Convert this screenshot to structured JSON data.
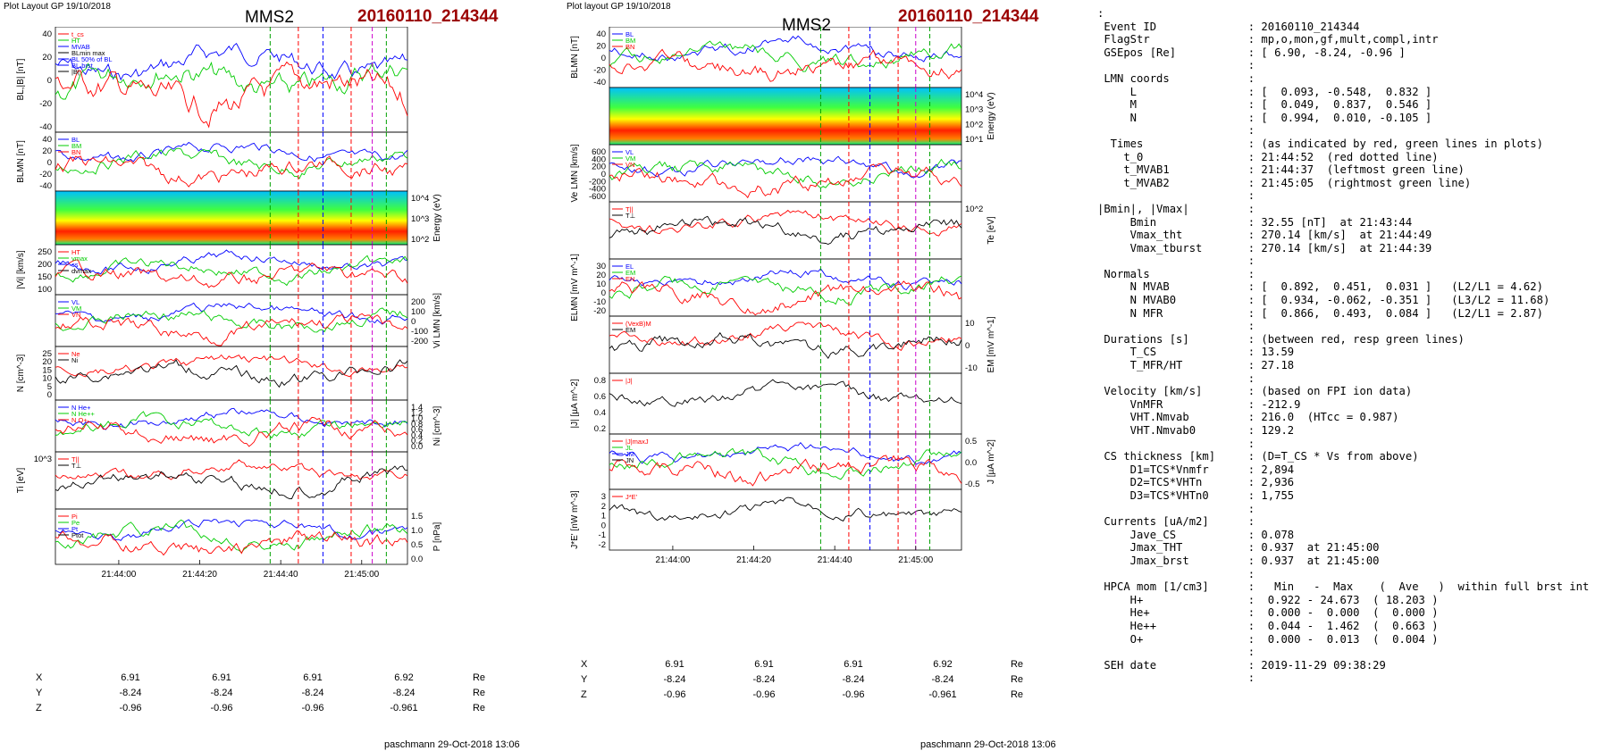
{
  "left": {
    "header": "Plot Layout GP 19/10/2018",
    "spacecraft": "MMS2",
    "event": "20160110_214344",
    "footer": "paschmann 29-Oct-2018 13:06",
    "time_ticks": [
      "21:44:00",
      "21:44:20",
      "21:44:40",
      "21:45:00"
    ],
    "ephemeris": {
      "rows": [
        {
          "label": "X",
          "values": [
            "6.91",
            "6.91",
            "6.91",
            "6.92"
          ],
          "unit": "Re"
        },
        {
          "label": "Y",
          "values": [
            "-8.24",
            "-8.24",
            "-8.24",
            "-8.24"
          ],
          "unit": "Re"
        },
        {
          "label": "Z",
          "values": [
            "-0.96",
            "-0.96",
            "-0.96",
            "-0.961"
          ],
          "unit": "Re"
        }
      ]
    },
    "panels": [
      {
        "ylabel": "BL,|B| [nT]",
        "ticks": [
          "40",
          "20",
          "0",
          "-20",
          "-40"
        ],
        "legend": [
          "t_cs",
          "HT",
          "MVAB",
          "BLmin max",
          "BL 50% of BL",
          "BL,brst",
          "|B|"
        ]
      },
      {
        "ylabel": "BLMN [nT]",
        "ticks": [
          "40",
          "20",
          "0",
          "-20",
          "-40"
        ],
        "legend": [
          "BL",
          "BM",
          "BN"
        ]
      },
      {
        "ylabel": "Energy (eV)",
        "ticks": [
          "10^4",
          "10^3",
          "10^2"
        ],
        "legend": []
      },
      {
        "ylabel": "|Vi| [km/s]",
        "ticks": [
          "250",
          "200",
          "150",
          "100"
        ],
        "legend": [
          "HT",
          "vmax",
          "cs",
          "dvmax"
        ]
      },
      {
        "ylabel": "Vi LMN [km/s]",
        "ticks": [
          "200",
          "100",
          "0",
          "-100",
          "-200"
        ],
        "legend": [
          "VL",
          "VM",
          "VN"
        ]
      },
      {
        "ylabel": "N [cm^-3]",
        "ticks": [
          "25",
          "20",
          "15",
          "10",
          "5",
          "0"
        ],
        "legend": [
          "Ne",
          "Ni"
        ]
      },
      {
        "ylabel": "Ni [cm^-3]",
        "ticks": [
          "1.4",
          "1.2",
          "1.0",
          "0.8",
          "0.6",
          "0.4",
          "0.2",
          "0.0"
        ],
        "legend": [
          "N He+",
          "N He++",
          "N O+"
        ]
      },
      {
        "ylabel": "Ti [eV]",
        "ticks": [
          "10^3"
        ],
        "legend": [
          "T||",
          "T⊥"
        ]
      },
      {
        "ylabel": "P [nPa]",
        "ticks": [
          "1.5",
          "1.0",
          "0.5",
          "0.0"
        ],
        "legend": [
          "Pi",
          "Pe",
          "Pt",
          "Ptot"
        ]
      }
    ]
  },
  "right": {
    "header": "Plot layout GP 19/10/2018",
    "spacecraft": "MMS2",
    "event": "20160110_214344",
    "footer": "paschmann 29-Oct-2018 13:06",
    "time_ticks": [
      "21:44:00",
      "21:44:20",
      "21:44:40",
      "21:45:00"
    ],
    "ephemeris": {
      "rows": [
        {
          "label": "X",
          "values": [
            "6.91",
            "6.91",
            "6.91",
            "6.92"
          ],
          "unit": "Re"
        },
        {
          "label": "Y",
          "values": [
            "-8.24",
            "-8.24",
            "-8.24",
            "-8.24"
          ],
          "unit": "Re"
        },
        {
          "label": "Z",
          "values": [
            "-0.96",
            "-0.96",
            "-0.96",
            "-0.961"
          ],
          "unit": "Re"
        }
      ]
    },
    "panels": [
      {
        "ylabel": "BLMN [nT]",
        "ticks": [
          "40",
          "20",
          "0",
          "-20",
          "-40"
        ],
        "legend": [
          "BL",
          "BM",
          "BN"
        ]
      },
      {
        "ylabel": "Energy (eV)",
        "ticks": [
          "10^4",
          "10^3",
          "10^2",
          "10^1"
        ],
        "legend": []
      },
      {
        "ylabel": "Ve LMN [km/s]",
        "ticks": [
          "600",
          "400",
          "200",
          "0",
          "-200",
          "-400",
          "-600"
        ],
        "legend": [
          "VL",
          "VM",
          "VN"
        ]
      },
      {
        "ylabel": "Te [eV]",
        "ticks": [
          "10^2"
        ],
        "legend": [
          "T||",
          "T⊥"
        ]
      },
      {
        "ylabel": "ELMN [mV m^-1]",
        "ticks": [
          "30",
          "20",
          "10",
          "0",
          "-10",
          "-20"
        ],
        "legend": [
          "EL",
          "EM",
          "EN"
        ]
      },
      {
        "ylabel": "EM [mV m^-1]",
        "ticks": [
          "10",
          "0",
          "-10"
        ],
        "legend": [
          "(VexB)M",
          "EM"
        ]
      },
      {
        "ylabel": "|J| [µA m^-2]",
        "ticks": [
          "0.8",
          "0.6",
          "0.4",
          "0.2"
        ],
        "legend": [
          "|J|"
        ]
      },
      {
        "ylabel": "J [µA m^-2]",
        "ticks": [
          "0.5",
          "0.0",
          "-0.5"
        ],
        "legend": [
          "|J|maxJ",
          "JL",
          "JM",
          "JN"
        ]
      },
      {
        "ylabel": "J*E' [nW m^-3]",
        "ticks": [
          "3",
          "2",
          "1",
          "0",
          "-1",
          "-2"
        ],
        "legend": [
          "J*E'"
        ]
      }
    ]
  },
  "info": {
    "lines": [
      ":",
      " Event ID              : 20160110_214344",
      " FlagStr               : mp,o,mon,gf,mult,compl,intr",
      " GSEpos [Re]           : [ 6.90, -8.24, -0.96 ]",
      "                       :",
      " LMN coords            :",
      "     L                 : [  0.093, -0.548,  0.832 ]",
      "     M                 : [  0.049,  0.837,  0.546 ]",
      "     N                 : [  0.994,  0.010, -0.105 ]",
      "                       :",
      "  Times                : (as indicated by red, green lines in plots)",
      "    t_0                : 21:44:52  (red dotted line)",
      "    t_MVAB1            : 21:44:37  (leftmost green line)",
      "    t_MVAB2            : 21:45:05  (rightmost green line)",
      "                       :",
      "|Bmin|, |Vmax|         :",
      "     Bmin              : 32.55 [nT]  at 21:43:44",
      "     Vmax_tht          : 270.14 [km/s]  at 21:44:49",
      "     Vmax_tburst       : 270.14 [km/s]  at 21:44:39",
      "                       :",
      " Normals               :",
      "     N MVAB            : [  0.892,  0.451,  0.031 ]   (L2/L1 = 4.62)",
      "     N MVAB0           : [  0.934, -0.062, -0.351 ]   (L3/L2 = 11.68)",
      "     N MFR             : [  0.866,  0.493,  0.084 ]   (L2/L1 = 2.87)",
      "                       :",
      " Durations [s]         : (between red, resp green lines)",
      "     T_CS              : 13.59",
      "     T_MFR/HT          : 27.18",
      "                       :",
      " Velocity [km/s]       : (based on FPI ion data)",
      "     VnMFR             : -212.9",
      "     VHT.Nmvab         : 216.0  (HTcc = 0.987)",
      "     VHT.Nmvab0        : 129.2",
      "                       :",
      " CS thickness [km]     : (D=T_CS * Vs from above)",
      "     D1=TCS*Vnmfr      : 2,894",
      "     D2=TCS*VHTn       : 2,936",
      "     D3=TCS*VHTn0      : 1,755",
      "                       :",
      " Currents [uA/m2]      :",
      "     Jave_CS           : 0.078",
      "     Jmax_THT          : 0.937  at 21:45:00",
      "     Jmax_brst         : 0.937  at 21:45:00",
      "                       :",
      " HPCA mom [1/cm3]      :   Min   -  Max    (  Ave   )  within full brst int",
      "     H+                :  0.922 - 24.673  ( 18.203 )",
      "     He+               :  0.000 -  0.000  (  0.000 )",
      "     He++              :  0.044 -  1.462  (  0.663 )",
      "     O+                :  0.000 -  0.013  (  0.004 )",
      "                       :",
      " SEH date              : 2019-11-29 09:38:29",
      "                       :"
    ]
  },
  "colors": {
    "event_title": "#9b0000",
    "L": "#0000ff",
    "M": "#00cc00",
    "N": "#ff0000",
    "total": "#000000",
    "marker_red": "#ff0000",
    "marker_green": "#00a000",
    "marker_blue": "#0000ff",
    "marker_magenta": "#cc00cc"
  },
  "chart_data": [
    {
      "type": "line",
      "panel": "left",
      "x_range": [
        "21:43:44",
        "21:45:13"
      ],
      "time_ticks": [
        "21:44:00",
        "21:44:20",
        "21:44:40",
        "21:45:00"
      ],
      "panels": 9
    },
    {
      "type": "line",
      "panel": "right",
      "x_range": [
        "21:43:44",
        "21:45:13"
      ],
      "time_ticks": [
        "21:44:00",
        "21:44:20",
        "21:44:40",
        "21:45:00"
      ],
      "panels": 9
    }
  ]
}
